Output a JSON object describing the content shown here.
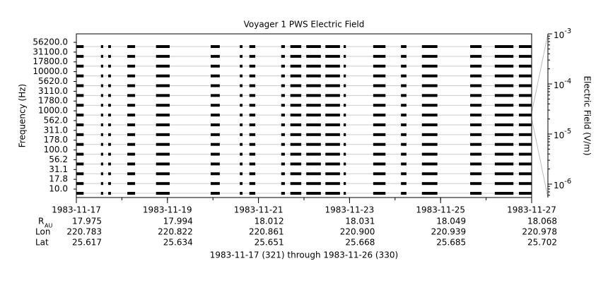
{
  "chart_data": {
    "type": "channel-strip",
    "title": "Voyager 1 PWS Electric Field",
    "y_label": "Frequency (Hz)",
    "y2_label": "Electric Field (V/m)",
    "x_label": "1983-11-17 (321) through 1983-11-26 (330)",
    "channels": [
      "56200.0",
      "31100.0",
      "17800.0",
      "10000.0",
      "5620.0",
      "3110.0",
      "1780.0",
      "1000.0",
      "562.0",
      "311.0",
      "178.0",
      "100.0",
      "56.2",
      "31.1",
      "17.8",
      "10.0"
    ],
    "xlim": [
      321,
      331
    ],
    "xticks": [
      {
        "value": 321,
        "label": "1983-11-17"
      },
      {
        "value": 323,
        "label": "1983-11-19"
      },
      {
        "value": 325,
        "label": "1983-11-21"
      },
      {
        "value": 327,
        "label": "1983-11-23"
      },
      {
        "value": 329,
        "label": "1983-11-25"
      },
      {
        "value": 331,
        "label": "1983-11-27"
      }
    ],
    "y2lim": [
      5.4e-07,
      0.001
    ],
    "y2ticks": [
      {
        "value": 0.001,
        "label": "10^-3"
      },
      {
        "value": 0.0001,
        "label": "10^-4"
      },
      {
        "value": 1e-05,
        "label": "10^-5"
      },
      {
        "value": 1e-06,
        "label": "10^-6"
      }
    ],
    "y2_log": true,
    "color": "#000000",
    "segments": [
      {
        "start": 321.0,
        "end": 321.16
      },
      {
        "start": 321.54,
        "end": 321.59
      },
      {
        "start": 321.7,
        "end": 321.76
      },
      {
        "start": 322.12,
        "end": 322.29
      },
      {
        "start": 322.75,
        "end": 323.05
      },
      {
        "start": 323.95,
        "end": 324.15
      },
      {
        "start": 324.59,
        "end": 324.65
      },
      {
        "start": 324.8,
        "end": 324.93
      },
      {
        "start": 325.5,
        "end": 325.58
      },
      {
        "start": 325.7,
        "end": 325.94
      },
      {
        "start": 326.05,
        "end": 326.37
      },
      {
        "start": 326.47,
        "end": 326.79
      },
      {
        "start": 326.87,
        "end": 326.92
      },
      {
        "start": 327.52,
        "end": 327.79
      },
      {
        "start": 328.13,
        "end": 328.25
      },
      {
        "start": 328.59,
        "end": 328.93
      },
      {
        "start": 329.65,
        "end": 329.9
      },
      {
        "start": 330.19,
        "end": 330.6
      },
      {
        "start": 330.72,
        "end": 331.0
      }
    ],
    "ephemeris": [
      {
        "label": "R",
        "subscript": "AU",
        "values": [
          "17.975",
          "17.994",
          "18.012",
          "18.031",
          "18.049",
          "18.068"
        ]
      },
      {
        "label": "Lon",
        "values": [
          "220.783",
          "220.822",
          "220.861",
          "220.900",
          "220.939",
          "220.978"
        ]
      },
      {
        "label": "Lat",
        "values": [
          "25.617",
          "25.634",
          "25.651",
          "25.668",
          "25.685",
          "25.702"
        ]
      }
    ]
  }
}
